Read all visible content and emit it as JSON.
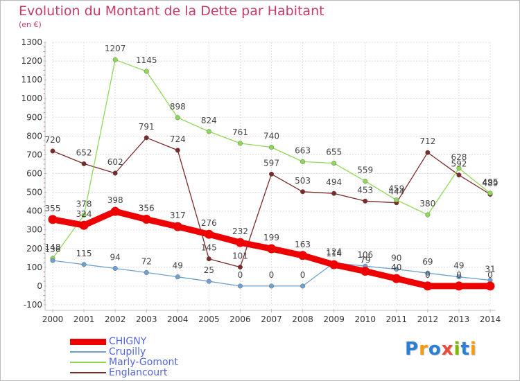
{
  "title": "Evolution du Montant de la Dette par Habitant",
  "unit": "(en €)",
  "logo": {
    "text": "Proxiti",
    "colors": [
      "#2a7fd4",
      "#f39c12",
      "#2a7fd4",
      "#e74c3c",
      "#7fb800",
      "#2a7fd4",
      "#f39c12"
    ]
  },
  "chart_data": {
    "type": "line",
    "x": [
      "2000",
      "2001",
      "2002",
      "2003",
      "2004",
      "2005",
      "2006",
      "2007",
      "2008",
      "2009",
      "2010",
      "2011",
      "2012",
      "2013",
      "2014"
    ],
    "ylim": [
      -100,
      1300
    ],
    "yticks": [
      "-100",
      "0",
      "100",
      "200",
      "300",
      "400",
      "500",
      "600",
      "700",
      "800",
      "900",
      "1000",
      "1100",
      "1200",
      "1300"
    ],
    "grid": true,
    "legend_position": "bottom-left",
    "series": [
      {
        "name": "CHIGNY",
        "color": "#ee0000",
        "values": [
          355,
          324,
          398,
          356,
          317,
          276,
          232,
          199,
          163,
          114,
          79,
          40,
          0,
          0,
          0
        ],
        "labels": [
          "355",
          "324",
          "398",
          "356",
          "317",
          "276",
          "232",
          "199",
          "163",
          "114",
          "79",
          "40",
          "0",
          "0",
          "0"
        ]
      },
      {
        "name": "Crupilly",
        "color": "#6ea1cf",
        "values": [
          136,
          115,
          94,
          72,
          49,
          25,
          0,
          0,
          0,
          124,
          106,
          90,
          69,
          49,
          31
        ],
        "labels": [
          "136",
          "115",
          "94",
          "72",
          "49",
          "25",
          "0",
          "0",
          "0",
          "124",
          "106",
          "90",
          "69",
          "49",
          "31"
        ]
      },
      {
        "name": "Marly-Gomont",
        "color": "#8fd855",
        "values": [
          148,
          378,
          1207,
          1145,
          898,
          824,
          761,
          740,
          663,
          655,
          559,
          459,
          380,
          628,
          495
        ],
        "labels": [
          "148",
          "378",
          "1207",
          "1145",
          "898",
          "824",
          "761",
          "740",
          "663",
          "655",
          "559",
          "459",
          "380",
          "628",
          "495"
        ]
      },
      {
        "name": "Englancourt",
        "color": "#7a2a2a",
        "values": [
          720,
          652,
          602,
          791,
          724,
          145,
          101,
          597,
          503,
          494,
          453,
          444,
          712,
          592,
          489
        ],
        "labels": [
          "720",
          "652",
          "602",
          "791",
          "724",
          "145",
          "101",
          "597",
          "503",
          "494",
          "453",
          "444",
          "712",
          "592",
          "489"
        ]
      }
    ]
  }
}
